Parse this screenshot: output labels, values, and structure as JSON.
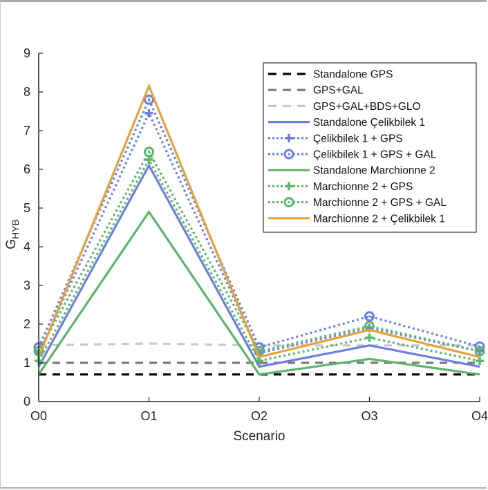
{
  "chart_data": {
    "type": "line",
    "title": "",
    "xlabel": "Scenario",
    "ylabel": "G",
    "ylabel_subscript": "HYB",
    "categories": [
      "O0",
      "O1",
      "O2",
      "O3",
      "O4"
    ],
    "ylim": [
      0,
      9
    ],
    "yticks": [
      "0",
      "1",
      "2",
      "3",
      "4",
      "5",
      "6",
      "7",
      "8",
      "9"
    ],
    "grid": false,
    "legend_position": "top-right",
    "series": [
      {
        "name": "Standalone GPS",
        "color": "#000000",
        "style": "dashed",
        "marker": "none",
        "values": [
          0.7,
          0.7,
          0.7,
          0.7,
          0.7
        ]
      },
      {
        "name": "GPS+GAL",
        "color": "#7a7a7a",
        "style": "dashed",
        "marker": "none",
        "values": [
          1.0,
          1.0,
          1.0,
          1.0,
          1.0
        ]
      },
      {
        "name": "GPS+GAL+BDS+GLO",
        "color": "#c8c8c8",
        "style": "dashed",
        "marker": "none",
        "values": [
          1.45,
          1.5,
          1.45,
          1.45,
          1.45
        ]
      },
      {
        "name": "Standalone Çelikbilek 1",
        "color": "#6b7fe0",
        "style": "solid",
        "marker": "none",
        "values": [
          0.9,
          6.1,
          0.9,
          1.45,
          0.9
        ]
      },
      {
        "name": "Çelikbilek 1 + GPS",
        "color": "#6b7fe0",
        "style": "dotted",
        "marker": "plus",
        "values": [
          1.25,
          7.45,
          1.25,
          1.9,
          1.3
        ]
      },
      {
        "name": "Çelikbilek 1 + GPS + GAL",
        "color": "#6b7fe0",
        "style": "dotted",
        "marker": "circle",
        "values": [
          1.4,
          7.8,
          1.4,
          2.2,
          1.42
        ]
      },
      {
        "name": "Standalone Marchionne 2",
        "color": "#5bb56a",
        "style": "solid",
        "marker": "none",
        "values": [
          0.7,
          4.9,
          0.7,
          1.1,
          0.7
        ]
      },
      {
        "name": "Marchionne 2 + GPS",
        "color": "#5bb56a",
        "style": "dotted",
        "marker": "plus",
        "values": [
          1.05,
          6.25,
          1.05,
          1.65,
          1.05
        ]
      },
      {
        "name": "Marchionne 2 + GPS + GAL",
        "color": "#5bb56a",
        "style": "dotted",
        "marker": "circle",
        "values": [
          1.3,
          6.45,
          1.3,
          1.95,
          1.3
        ]
      },
      {
        "name": "Marchionne 2 + Çelikbilek 1",
        "color": "#e5a23a",
        "style": "solid",
        "marker": "none",
        "values": [
          1.15,
          8.15,
          1.15,
          1.85,
          1.15
        ]
      }
    ]
  }
}
